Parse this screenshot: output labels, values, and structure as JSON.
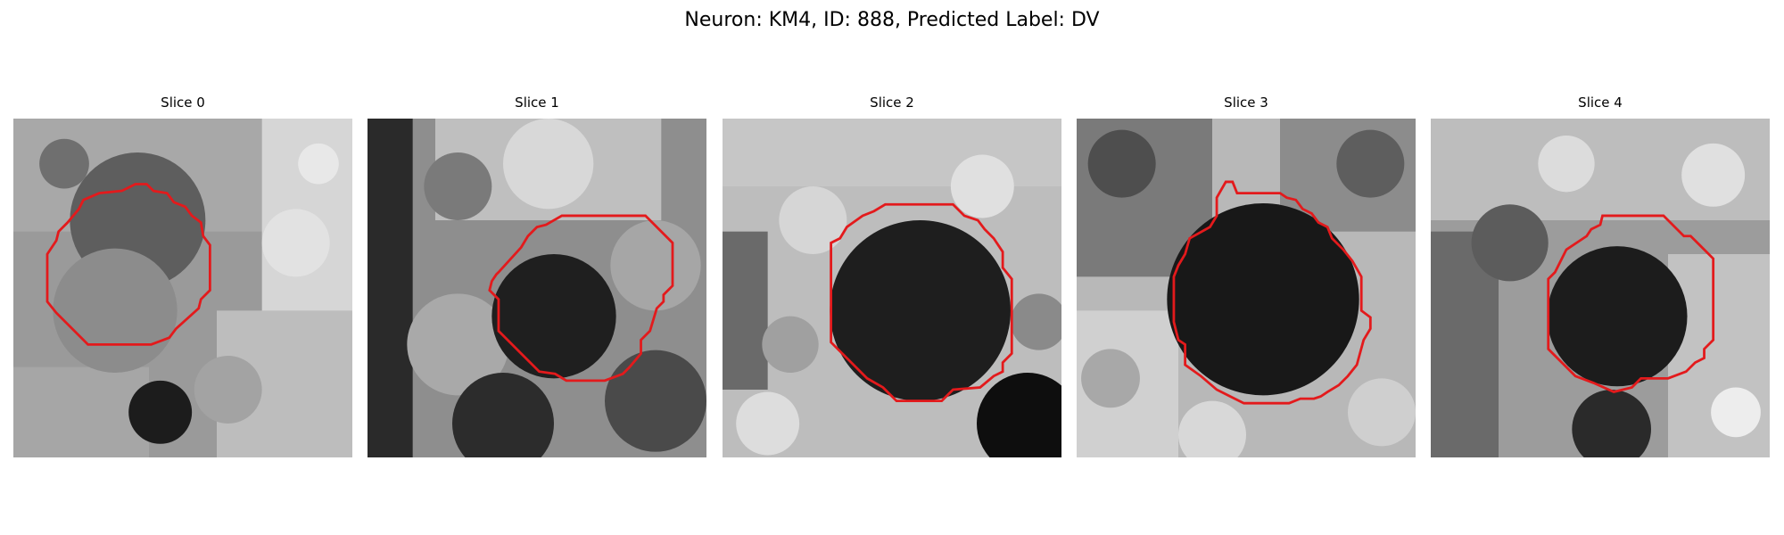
{
  "figure": {
    "title": "Neuron: KM4, ID: 888, Predicted Label: DV",
    "contour_color": "#e31a1c",
    "colormap": "gray",
    "panels": [
      {
        "title": "Slice 0"
      },
      {
        "title": "Slice 1"
      },
      {
        "title": "Slice 2"
      },
      {
        "title": "Slice 3"
      },
      {
        "title": "Slice 4"
      }
    ]
  }
}
